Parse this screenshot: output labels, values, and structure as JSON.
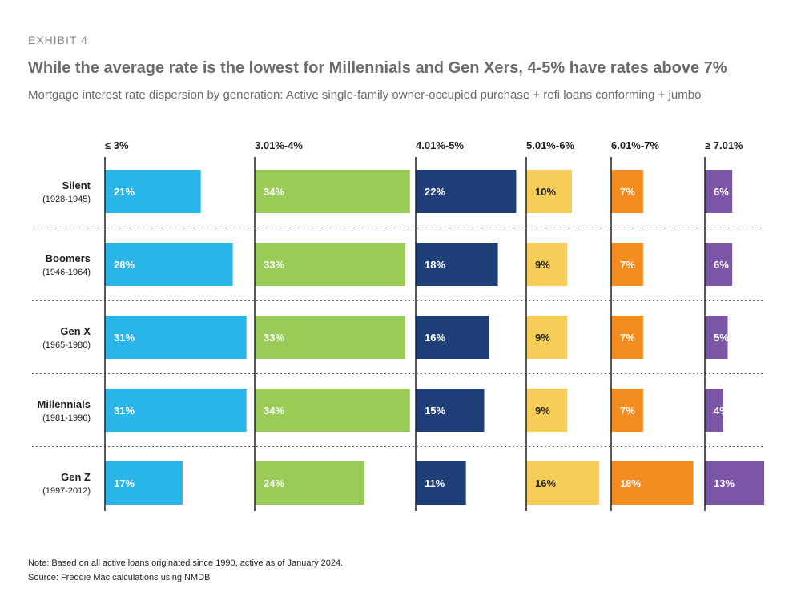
{
  "header": {
    "exhibit": "EXHIBIT 4",
    "title": "While the average rate is the lowest for Millennials and Gen Xers, 4-5% have rates above 7%",
    "subtitle": "Mortgage interest rate dispersion by generation: Active single-family owner-occupied purchase + refi loans conforming + jumbo"
  },
  "chart_data": {
    "type": "bar",
    "layout": "small-multiples-horizontal",
    "title": "While the average rate is the lowest for Millennials and Gen Xers, 4-5% have rates above 7%",
    "categories": [
      {
        "name": "Silent",
        "years": "(1928-1945)"
      },
      {
        "name": "Boomers",
        "years": "(1946-1964)"
      },
      {
        "name": "Gen X",
        "years": "(1965-1980)"
      },
      {
        "name": "Millennials",
        "years": "(1981-1996)"
      },
      {
        "name": "Gen Z",
        "years": "(1997-2012)"
      }
    ],
    "series": [
      {
        "name": "≤ 3%",
        "color": "#29b5e8",
        "values": [
          21,
          28,
          31,
          31,
          17
        ]
      },
      {
        "name": "3.01%-4%",
        "color": "#9acb57",
        "values": [
          34,
          33,
          33,
          34,
          24
        ]
      },
      {
        "name": "4.01%-5%",
        "color": "#1f3f78",
        "values": [
          22,
          18,
          16,
          15,
          11
        ]
      },
      {
        "name": "5.01%-6%",
        "color": "#f6cd56",
        "values": [
          10,
          9,
          9,
          9,
          16
        ]
      },
      {
        "name": "6.01%-7%",
        "color": "#f48b1f",
        "values": [
          7,
          7,
          7,
          7,
          18
        ]
      },
      {
        "name": "≥ 7.01%",
        "color": "#7b55a6",
        "values": [
          6,
          6,
          5,
          4,
          13
        ]
      }
    ],
    "value_suffix": "%",
    "xlabel": "",
    "ylabel": ""
  },
  "footer": {
    "note": "Note: Based on all active loans originated since 1990, active as of January 2024.",
    "source": "Source: Freddie Mac calculations using NMDB"
  }
}
